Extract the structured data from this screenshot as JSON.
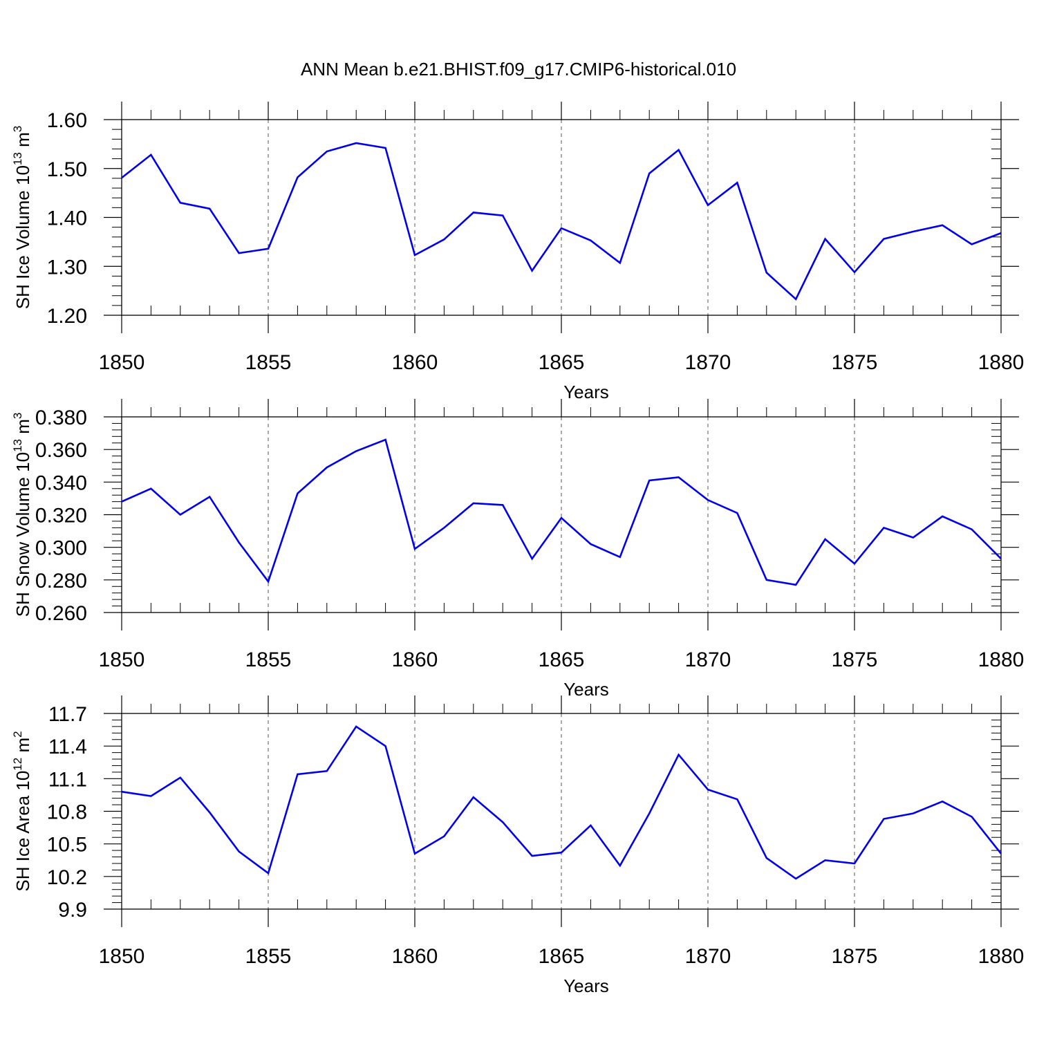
{
  "title": "ANN Mean b.e21.BHIST.f09_g17.CMIP6-historical.010",
  "line_color": "#0000ee",
  "chart_data": [
    {
      "type": "line",
      "xlabel": "Years",
      "ylabel_text": "SH Ice Volume 10",
      "ylabel_sup": "13",
      "ylabel_unit": " m",
      "ylabel_unit_sup": "3",
      "xlim": [
        1850,
        1880
      ],
      "ylim": [
        1.2,
        1.6
      ],
      "xticks": [
        1850,
        1855,
        1860,
        1865,
        1870,
        1875,
        1880
      ],
      "xtick_labels": [
        "1850",
        "1855",
        "1860",
        "1865",
        "1870",
        "1875",
        "1880"
      ],
      "yticks": [
        1.2,
        1.3,
        1.4,
        1.5,
        1.6
      ],
      "ytick_labels": [
        "1.20",
        "1.30",
        "1.40",
        "1.50",
        "1.60"
      ],
      "y_minor_step": 0.02,
      "grid": "vertical dashed at major x ticks",
      "x": [
        1850,
        1851,
        1852,
        1853,
        1854,
        1855,
        1856,
        1857,
        1858,
        1859,
        1860,
        1861,
        1862,
        1863,
        1864,
        1865,
        1866,
        1867,
        1868,
        1869,
        1870,
        1871,
        1872,
        1873,
        1874,
        1875,
        1876,
        1877,
        1878,
        1879,
        1880
      ],
      "values": [
        1.481,
        1.528,
        1.43,
        1.418,
        1.327,
        1.336,
        1.482,
        1.535,
        1.552,
        1.542,
        1.323,
        1.355,
        1.41,
        1.404,
        1.291,
        1.378,
        1.353,
        1.307,
        1.49,
        1.538,
        1.425,
        1.471,
        1.287,
        1.233,
        1.356,
        1.288,
        1.356,
        1.371,
        1.384,
        1.345,
        1.368
      ]
    },
    {
      "type": "line",
      "xlabel": "Years",
      "ylabel_text": "SH Snow Volume 10",
      "ylabel_sup": "13",
      "ylabel_unit": " m",
      "ylabel_unit_sup": "3",
      "xlim": [
        1850,
        1880
      ],
      "ylim": [
        0.26,
        0.38
      ],
      "xticks": [
        1850,
        1855,
        1860,
        1865,
        1870,
        1875,
        1880
      ],
      "xtick_labels": [
        "1850",
        "1855",
        "1860",
        "1865",
        "1870",
        "1875",
        "1880"
      ],
      "yticks": [
        0.26,
        0.28,
        0.3,
        0.32,
        0.34,
        0.36,
        0.38
      ],
      "ytick_labels": [
        "0.260",
        "0.280",
        "0.300",
        "0.320",
        "0.340",
        "0.360",
        "0.380"
      ],
      "y_minor_step": 0.004,
      "grid": "vertical dashed at major x ticks",
      "x": [
        1850,
        1851,
        1852,
        1853,
        1854,
        1855,
        1856,
        1857,
        1858,
        1859,
        1860,
        1861,
        1862,
        1863,
        1864,
        1865,
        1866,
        1867,
        1868,
        1869,
        1870,
        1871,
        1872,
        1873,
        1874,
        1875,
        1876,
        1877,
        1878,
        1879,
        1880
      ],
      "values": [
        0.328,
        0.336,
        0.32,
        0.331,
        0.303,
        0.279,
        0.333,
        0.349,
        0.359,
        0.366,
        0.299,
        0.312,
        0.327,
        0.326,
        0.293,
        0.318,
        0.302,
        0.294,
        0.341,
        0.343,
        0.329,
        0.321,
        0.28,
        0.277,
        0.305,
        0.29,
        0.312,
        0.306,
        0.319,
        0.311,
        0.293
      ]
    },
    {
      "type": "line",
      "xlabel": "Years",
      "ylabel_text": "SH Ice Area 10",
      "ylabel_sup": "12",
      "ylabel_unit": " m",
      "ylabel_unit_sup": "2",
      "xlim": [
        1850,
        1880
      ],
      "ylim": [
        9.9,
        11.7
      ],
      "xticks": [
        1850,
        1855,
        1860,
        1865,
        1870,
        1875,
        1880
      ],
      "xtick_labels": [
        "1850",
        "1855",
        "1860",
        "1865",
        "1870",
        "1875",
        "1880"
      ],
      "yticks": [
        9.9,
        10.2,
        10.5,
        10.8,
        11.1,
        11.4,
        11.7
      ],
      "ytick_labels": [
        "9.9",
        "10.2",
        "10.5",
        "10.8",
        "11.1",
        "11.4",
        "11.7"
      ],
      "y_minor_step": 0.06,
      "grid": "vertical dashed at major x ticks",
      "x": [
        1850,
        1851,
        1852,
        1853,
        1854,
        1855,
        1856,
        1857,
        1858,
        1859,
        1860,
        1861,
        1862,
        1863,
        1864,
        1865,
        1866,
        1867,
        1868,
        1869,
        1870,
        1871,
        1872,
        1873,
        1874,
        1875,
        1876,
        1877,
        1878,
        1879,
        1880
      ],
      "values": [
        10.98,
        10.94,
        11.11,
        10.79,
        10.43,
        10.23,
        11.14,
        11.17,
        11.58,
        11.4,
        10.41,
        10.57,
        10.93,
        10.7,
        10.39,
        10.42,
        10.67,
        10.3,
        10.78,
        11.32,
        11.0,
        10.91,
        10.37,
        10.18,
        10.35,
        10.32,
        10.73,
        10.78,
        10.89,
        10.75,
        10.41
      ]
    }
  ]
}
